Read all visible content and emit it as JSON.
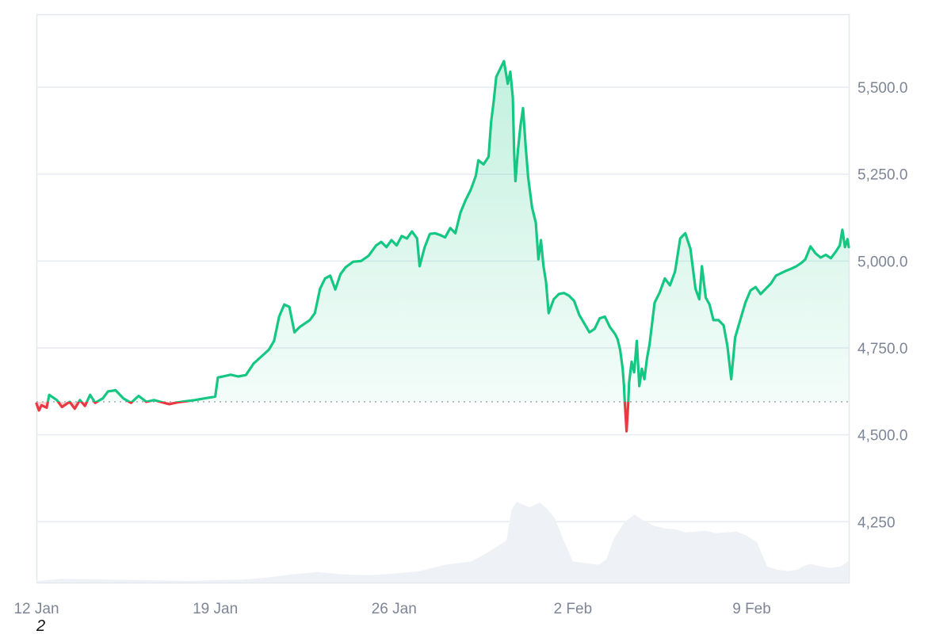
{
  "chart_data": {
    "type": "line",
    "title": "",
    "baseline": 4595,
    "ylim": [
      4075,
      5710
    ],
    "y_ticks": [
      {
        "value": 4250,
        "label": "4,250"
      },
      {
        "value": 4500,
        "label": "4,500.0"
      },
      {
        "value": 4750,
        "label": "4,750.0"
      },
      {
        "value": 5000,
        "label": "5,000.0"
      },
      {
        "value": 5250,
        "label": "5,250.0"
      },
      {
        "value": 5500,
        "label": "5,500.0"
      }
    ],
    "x_ticks": [
      {
        "day": 0,
        "label": "12 Jan"
      },
      {
        "day": 7,
        "label": "19 Jan"
      },
      {
        "day": 14,
        "label": "26 Jan"
      },
      {
        "day": 21,
        "label": "2 Feb"
      },
      {
        "day": 28,
        "label": "9 Feb"
      }
    ],
    "xlim_days": [
      0,
      31.8
    ],
    "colors": {
      "up": "#16c784",
      "down": "#ea3943",
      "grid": "#e8ebf0",
      "volume": "#eef1f5",
      "baseline": "#9aa1ad"
    },
    "series": [
      {
        "values": [
          [
            0.0,
            4590
          ],
          [
            0.1,
            4570
          ],
          [
            0.2,
            4585
          ],
          [
            0.4,
            4578
          ],
          [
            0.5,
            4615
          ],
          [
            0.8,
            4600
          ],
          [
            1.0,
            4580
          ],
          [
            1.3,
            4595
          ],
          [
            1.5,
            4575
          ],
          [
            1.7,
            4600
          ],
          [
            1.9,
            4583
          ],
          [
            2.1,
            4615
          ],
          [
            2.3,
            4592
          ],
          [
            2.6,
            4605
          ],
          [
            2.8,
            4625
          ],
          [
            3.1,
            4628
          ],
          [
            3.4,
            4605
          ],
          [
            3.7,
            4592
          ],
          [
            4.0,
            4612
          ],
          [
            4.3,
            4595
          ],
          [
            4.6,
            4600
          ],
          [
            5.0,
            4592
          ],
          [
            5.2,
            4588
          ],
          [
            5.5,
            4593
          ],
          [
            5.8,
            4596
          ],
          [
            6.2,
            4600
          ],
          [
            6.6,
            4605
          ],
          [
            7.0,
            4610
          ],
          [
            7.1,
            4665
          ],
          [
            7.3,
            4668
          ],
          [
            7.6,
            4673
          ],
          [
            7.9,
            4668
          ],
          [
            8.2,
            4672
          ],
          [
            8.5,
            4705
          ],
          [
            8.8,
            4725
          ],
          [
            9.1,
            4745
          ],
          [
            9.3,
            4770
          ],
          [
            9.5,
            4840
          ],
          [
            9.7,
            4875
          ],
          [
            9.9,
            4868
          ],
          [
            10.1,
            4795
          ],
          [
            10.3,
            4810
          ],
          [
            10.5,
            4820
          ],
          [
            10.7,
            4830
          ],
          [
            10.9,
            4850
          ],
          [
            11.1,
            4920
          ],
          [
            11.3,
            4950
          ],
          [
            11.5,
            4958
          ],
          [
            11.7,
            4918
          ],
          [
            11.9,
            4962
          ],
          [
            12.1,
            4982
          ],
          [
            12.4,
            4998
          ],
          [
            12.7,
            5000
          ],
          [
            13.0,
            5015
          ],
          [
            13.3,
            5045
          ],
          [
            13.5,
            5055
          ],
          [
            13.7,
            5040
          ],
          [
            13.9,
            5060
          ],
          [
            14.1,
            5045
          ],
          [
            14.3,
            5072
          ],
          [
            14.5,
            5065
          ],
          [
            14.7,
            5085
          ],
          [
            14.9,
            5065
          ],
          [
            15.0,
            4985
          ],
          [
            15.2,
            5040
          ],
          [
            15.4,
            5078
          ],
          [
            15.6,
            5080
          ],
          [
            15.8,
            5075
          ],
          [
            16.0,
            5068
          ],
          [
            16.2,
            5095
          ],
          [
            16.4,
            5080
          ],
          [
            16.6,
            5140
          ],
          [
            16.8,
            5175
          ],
          [
            17.0,
            5205
          ],
          [
            17.2,
            5245
          ],
          [
            17.3,
            5290
          ],
          [
            17.5,
            5278
          ],
          [
            17.7,
            5300
          ],
          [
            17.8,
            5400
          ],
          [
            17.9,
            5460
          ],
          [
            18.0,
            5530
          ],
          [
            18.2,
            5560
          ],
          [
            18.3,
            5575
          ],
          [
            18.45,
            5510
          ],
          [
            18.55,
            5545
          ],
          [
            18.65,
            5470
          ],
          [
            18.7,
            5310
          ],
          [
            18.75,
            5230
          ],
          [
            18.85,
            5320
          ],
          [
            18.95,
            5390
          ],
          [
            19.05,
            5440
          ],
          [
            19.15,
            5330
          ],
          [
            19.25,
            5240
          ],
          [
            19.4,
            5155
          ],
          [
            19.55,
            5110
          ],
          [
            19.65,
            5005
          ],
          [
            19.75,
            5060
          ],
          [
            19.85,
            4985
          ],
          [
            19.95,
            4940
          ],
          [
            20.05,
            4850
          ],
          [
            20.25,
            4890
          ],
          [
            20.45,
            4905
          ],
          [
            20.65,
            4908
          ],
          [
            20.85,
            4900
          ],
          [
            21.05,
            4885
          ],
          [
            21.25,
            4845
          ],
          [
            21.45,
            4820
          ],
          [
            21.65,
            4795
          ],
          [
            21.85,
            4805
          ],
          [
            22.05,
            4835
          ],
          [
            22.25,
            4840
          ],
          [
            22.45,
            4810
          ],
          [
            22.65,
            4790
          ],
          [
            22.75,
            4775
          ],
          [
            22.85,
            4745
          ],
          [
            22.95,
            4690
          ],
          [
            23.0,
            4640
          ],
          [
            23.03,
            4595
          ],
          [
            23.07,
            4550
          ],
          [
            23.1,
            4510
          ],
          [
            23.14,
            4560
          ],
          [
            23.17,
            4595
          ],
          [
            23.2,
            4650
          ],
          [
            23.3,
            4710
          ],
          [
            23.4,
            4680
          ],
          [
            23.5,
            4770
          ],
          [
            23.6,
            4640
          ],
          [
            23.7,
            4690
          ],
          [
            23.8,
            4660
          ],
          [
            23.9,
            4720
          ],
          [
            24.0,
            4760
          ],
          [
            24.2,
            4880
          ],
          [
            24.4,
            4910
          ],
          [
            24.6,
            4950
          ],
          [
            24.8,
            4930
          ],
          [
            25.0,
            4970
          ],
          [
            25.2,
            5065
          ],
          [
            25.4,
            5080
          ],
          [
            25.6,
            5035
          ],
          [
            25.8,
            4920
          ],
          [
            25.95,
            4890
          ],
          [
            26.05,
            4985
          ],
          [
            26.2,
            4895
          ],
          [
            26.35,
            4875
          ],
          [
            26.5,
            4830
          ],
          [
            26.7,
            4830
          ],
          [
            26.9,
            4815
          ],
          [
            27.05,
            4755
          ],
          [
            27.2,
            4660
          ],
          [
            27.35,
            4780
          ],
          [
            27.55,
            4830
          ],
          [
            27.75,
            4880
          ],
          [
            27.95,
            4915
          ],
          [
            28.15,
            4925
          ],
          [
            28.35,
            4905
          ],
          [
            28.55,
            4920
          ],
          [
            28.75,
            4935
          ],
          [
            28.95,
            4958
          ],
          [
            29.15,
            4965
          ],
          [
            29.35,
            4972
          ],
          [
            29.55,
            4978
          ],
          [
            29.75,
            4985
          ],
          [
            29.95,
            4995
          ],
          [
            30.1,
            5005
          ],
          [
            30.3,
            5042
          ],
          [
            30.5,
            5022
          ],
          [
            30.7,
            5010
          ],
          [
            30.9,
            5018
          ],
          [
            31.1,
            5008
          ],
          [
            31.3,
            5028
          ],
          [
            31.45,
            5045
          ],
          [
            31.55,
            5090
          ],
          [
            31.65,
            5040
          ],
          [
            31.75,
            5063
          ],
          [
            31.8,
            5040
          ]
        ]
      }
    ],
    "volume": [
      [
        0.0,
        0.02
      ],
      [
        1.0,
        0.045
      ],
      [
        2.0,
        0.04
      ],
      [
        3.0,
        0.035
      ],
      [
        4.0,
        0.03
      ],
      [
        5.0,
        0.025
      ],
      [
        6.0,
        0.02
      ],
      [
        7.0,
        0.03
      ],
      [
        8.0,
        0.035
      ],
      [
        9.0,
        0.06
      ],
      [
        10.0,
        0.1
      ],
      [
        11.0,
        0.13
      ],
      [
        12.0,
        0.1
      ],
      [
        13.0,
        0.09
      ],
      [
        14.0,
        0.11
      ],
      [
        15.0,
        0.14
      ],
      [
        16.0,
        0.22
      ],
      [
        17.0,
        0.26
      ],
      [
        17.5,
        0.34
      ],
      [
        18.0,
        0.44
      ],
      [
        18.4,
        0.52
      ],
      [
        18.6,
        0.9
      ],
      [
        18.8,
        1.0
      ],
      [
        19.0,
        0.97
      ],
      [
        19.3,
        0.93
      ],
      [
        19.5,
        0.96
      ],
      [
        19.7,
        0.99
      ],
      [
        20.0,
        0.91
      ],
      [
        20.3,
        0.79
      ],
      [
        20.6,
        0.55
      ],
      [
        21.0,
        0.26
      ],
      [
        21.5,
        0.24
      ],
      [
        22.0,
        0.22
      ],
      [
        22.3,
        0.28
      ],
      [
        22.6,
        0.54
      ],
      [
        23.0,
        0.74
      ],
      [
        23.4,
        0.84
      ],
      [
        23.8,
        0.76
      ],
      [
        24.2,
        0.7
      ],
      [
        24.6,
        0.67
      ],
      [
        25.0,
        0.66
      ],
      [
        25.4,
        0.62
      ],
      [
        25.8,
        0.63
      ],
      [
        26.2,
        0.64
      ],
      [
        26.6,
        0.61
      ],
      [
        27.0,
        0.62
      ],
      [
        27.4,
        0.63
      ],
      [
        27.8,
        0.58
      ],
      [
        28.2,
        0.5
      ],
      [
        28.6,
        0.2
      ],
      [
        29.0,
        0.16
      ],
      [
        29.4,
        0.14
      ],
      [
        29.8,
        0.16
      ],
      [
        30.0,
        0.2
      ],
      [
        30.3,
        0.23
      ],
      [
        30.7,
        0.2
      ],
      [
        31.1,
        0.18
      ],
      [
        31.5,
        0.2
      ],
      [
        31.8,
        0.27
      ]
    ]
  },
  "footnote": "2"
}
